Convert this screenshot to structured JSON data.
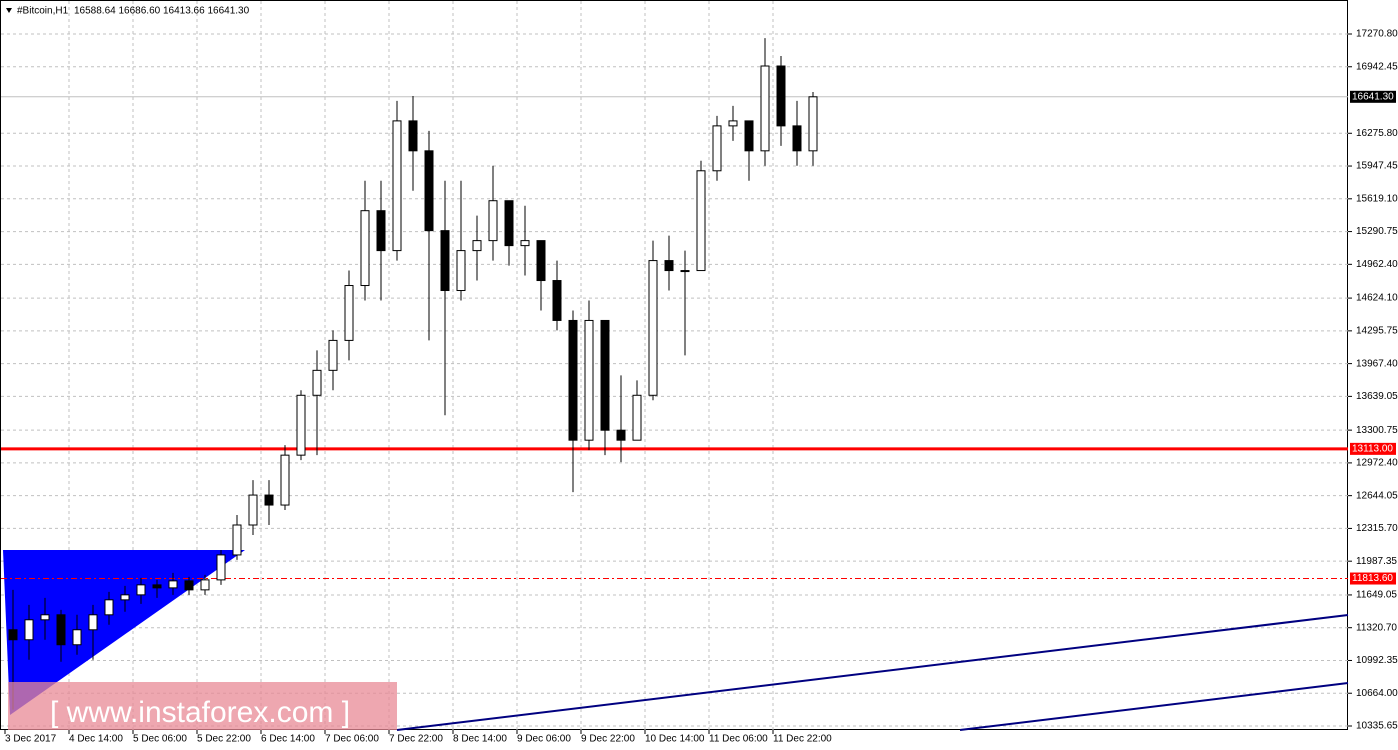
{
  "chart_data": {
    "type": "candlestick",
    "title": "#Bitcoin,H1",
    "header_values": "16588.64 16686.60 16413.66 16641.30",
    "watermark": "[ www.instaforex.com ]",
    "categories": [
      "3 Dec 2017",
      null,
      null,
      null,
      "4 Dec 14:00",
      null,
      null,
      null,
      "5 Dec 06:00",
      null,
      null,
      null,
      "5 Dec 22:00",
      null,
      null,
      null,
      "6 Dec 14:00",
      null,
      null,
      null,
      "7 Dec 06:00",
      null,
      null,
      null,
      "7 Dec 22:00",
      null,
      null,
      null,
      "8 Dec 14:00",
      null,
      null,
      null,
      "9 Dec 06:00",
      null,
      null,
      null,
      "9 Dec 22:00",
      null,
      null,
      null,
      "10 Dec 14:00",
      null,
      null,
      null,
      "11 Dec 06:00",
      null,
      null,
      null,
      "11 Dec 22:00",
      null,
      null
    ],
    "open": [
      11300,
      11200,
      11400,
      11450,
      11150,
      11300,
      11450,
      11600,
      11650,
      11750,
      11720,
      11790,
      11700,
      11800,
      12050,
      12350,
      12650,
      12550,
      13050,
      13650,
      13900,
      14200,
      14750,
      15500,
      15100,
      16400,
      16100,
      15300,
      14700,
      15100,
      15200,
      15600,
      15150,
      15200,
      14800,
      14400,
      13200,
      14400,
      13300,
      13200,
      13650,
      15000,
      14900,
      14900,
      15900,
      16350,
      16400,
      16100,
      16950,
      16350,
      16100
    ],
    "high": [
      11700,
      11550,
      11620,
      11500,
      11450,
      11550,
      11680,
      11740,
      11820,
      11800,
      11870,
      11830,
      11850,
      12100,
      12450,
      12800,
      12800,
      13150,
      13700,
      14100,
      14300,
      14900,
      15800,
      15800,
      16600,
      16650,
      16300,
      15800,
      15800,
      15450,
      15950,
      15600,
      15550,
      15200,
      15000,
      14500,
      14600,
      14400,
      13850,
      13800,
      15200,
      15250,
      15100,
      16000,
      16450,
      16550,
      16400,
      17230,
      17050,
      16600,
      16690
    ],
    "low": [
      10500,
      11000,
      11200,
      10980,
      11050,
      11000,
      11350,
      11480,
      11560,
      11620,
      11650,
      11650,
      11650,
      11750,
      12000,
      12250,
      12350,
      12500,
      13000,
      13050,
      13700,
      14000,
      14600,
      14600,
      15000,
      15700,
      14200,
      13450,
      14600,
      14800,
      15000,
      14950,
      14850,
      14500,
      14300,
      12680,
      13100,
      13050,
      12980,
      13200,
      13600,
      14700,
      14050,
      14900,
      15800,
      16200,
      15800,
      15950,
      16150,
      15950,
      15950
    ],
    "close": [
      11200,
      11400,
      11450,
      11150,
      11300,
      11450,
      11600,
      11650,
      11750,
      11720,
      11790,
      11700,
      11800,
      12050,
      12350,
      12650,
      12550,
      13050,
      13650,
      13900,
      14200,
      14750,
      15500,
      15100,
      16400,
      16100,
      15300,
      14700,
      15100,
      15200,
      15600,
      15150,
      15200,
      14800,
      14400,
      13200,
      14400,
      13300,
      13200,
      13650,
      15000,
      14900,
      14900,
      15900,
      16350,
      16400,
      16100,
      16950,
      16350,
      16100,
      16641.3
    ],
    "ylim": [
      10295.5,
      17611.5
    ],
    "yticks": [
      {
        "value": 17270.8,
        "label": "17270.80"
      },
      {
        "value": 16942.45,
        "label": "16942.45"
      },
      {
        "value": 16275.8,
        "label": "16275.80"
      },
      {
        "value": 15947.45,
        "label": "15947.45"
      },
      {
        "value": 15619.1,
        "label": "15619.10"
      },
      {
        "value": 15290.75,
        "label": "15290.75"
      },
      {
        "value": 14962.4,
        "label": "14962.40"
      },
      {
        "value": 14624.1,
        "label": "14624.10"
      },
      {
        "value": 14295.75,
        "label": "14295.75"
      },
      {
        "value": 13967.4,
        "label": "13967.40"
      },
      {
        "value": 13639.05,
        "label": "13639.05"
      },
      {
        "value": 13300.75,
        "label": "13300.75"
      },
      {
        "value": 12972.4,
        "label": "12972.40"
      },
      {
        "value": 12644.05,
        "label": "12644.05"
      },
      {
        "value": 12315.7,
        "label": "12315.70"
      },
      {
        "value": 11987.35,
        "label": "11987.35"
      },
      {
        "value": 11649.05,
        "label": "11649.05"
      },
      {
        "value": 11320.7,
        "label": "11320.70"
      },
      {
        "value": 10992.35,
        "label": "10992.35"
      },
      {
        "value": 10664.0,
        "label": "10664.00"
      },
      {
        "value": 10335.65,
        "label": "10335.65"
      }
    ],
    "levels": [
      {
        "value": 16641.3,
        "label": "16641.30",
        "color": "#c0c0c0",
        "style": "solid"
      },
      {
        "value": 13113.0,
        "label": "13113.00",
        "color": "#ff0000",
        "style": "thick"
      },
      {
        "value": 11813.6,
        "label": "11813.60",
        "color": "#ff0000",
        "style": "dashed"
      }
    ],
    "grid": true
  }
}
